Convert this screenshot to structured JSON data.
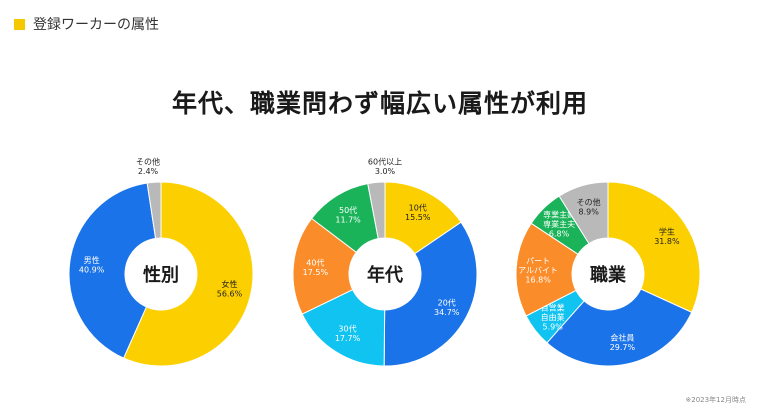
{
  "section": {
    "title": "登録ワーカーの属性",
    "accent_color": "#f5c800"
  },
  "headline": "年代、職業問わず幅広い属性が利用",
  "footnote": "※2023年12月時点",
  "chart_data": [
    {
      "type": "pie",
      "center_label": "性別",
      "slices": [
        {
          "label": [
            "女性"
          ],
          "value": 56.6,
          "display": "56.6%",
          "color": "#fcd000"
        },
        {
          "label": [
            "男性"
          ],
          "value": 40.9,
          "display": "40.9%",
          "color": "#1a73e8"
        },
        {
          "label": [
            "その他"
          ],
          "value": 2.4,
          "display": "2.4%",
          "color": "#b9b9b9"
        }
      ]
    },
    {
      "type": "pie",
      "center_label": "年代",
      "slices": [
        {
          "label": [
            "10代"
          ],
          "value": 15.5,
          "display": "15.5%",
          "color": "#fcd000"
        },
        {
          "label": [
            "20代"
          ],
          "value": 34.7,
          "display": "34.7%",
          "color": "#1a73e8"
        },
        {
          "label": [
            "30代"
          ],
          "value": 17.7,
          "display": "17.7%",
          "color": "#10c3f0"
        },
        {
          "label": [
            "40代"
          ],
          "value": 17.5,
          "display": "17.5%",
          "color": "#fb8c2a"
        },
        {
          "label": [
            "50代"
          ],
          "value": 11.7,
          "display": "11.7%",
          "color": "#1ab35a"
        },
        {
          "label": [
            "60代以上"
          ],
          "value": 3.0,
          "display": "3.0%",
          "color": "#b9b9b9"
        }
      ]
    },
    {
      "type": "pie",
      "center_label": "職業",
      "slices": [
        {
          "label": [
            "学生"
          ],
          "value": 31.8,
          "display": "31.8%",
          "color": "#fcd000"
        },
        {
          "label": [
            "会社員"
          ],
          "value": 29.7,
          "display": "29.7%",
          "color": "#1a73e8"
        },
        {
          "label": [
            "自営業",
            "自由業"
          ],
          "value": 5.9,
          "display": "5.9%",
          "color": "#10c3f0"
        },
        {
          "label": [
            "パート",
            "アルバイト"
          ],
          "value": 16.8,
          "display": "16.8%",
          "color": "#fb8c2a"
        },
        {
          "label": [
            "専業主婦",
            "専業主夫"
          ],
          "value": 6.8,
          "display": "6.8%",
          "color": "#1ab35a"
        },
        {
          "label": [
            "その他"
          ],
          "value": 8.9,
          "display": "8.9%",
          "color": "#b9b9b9"
        }
      ]
    }
  ]
}
